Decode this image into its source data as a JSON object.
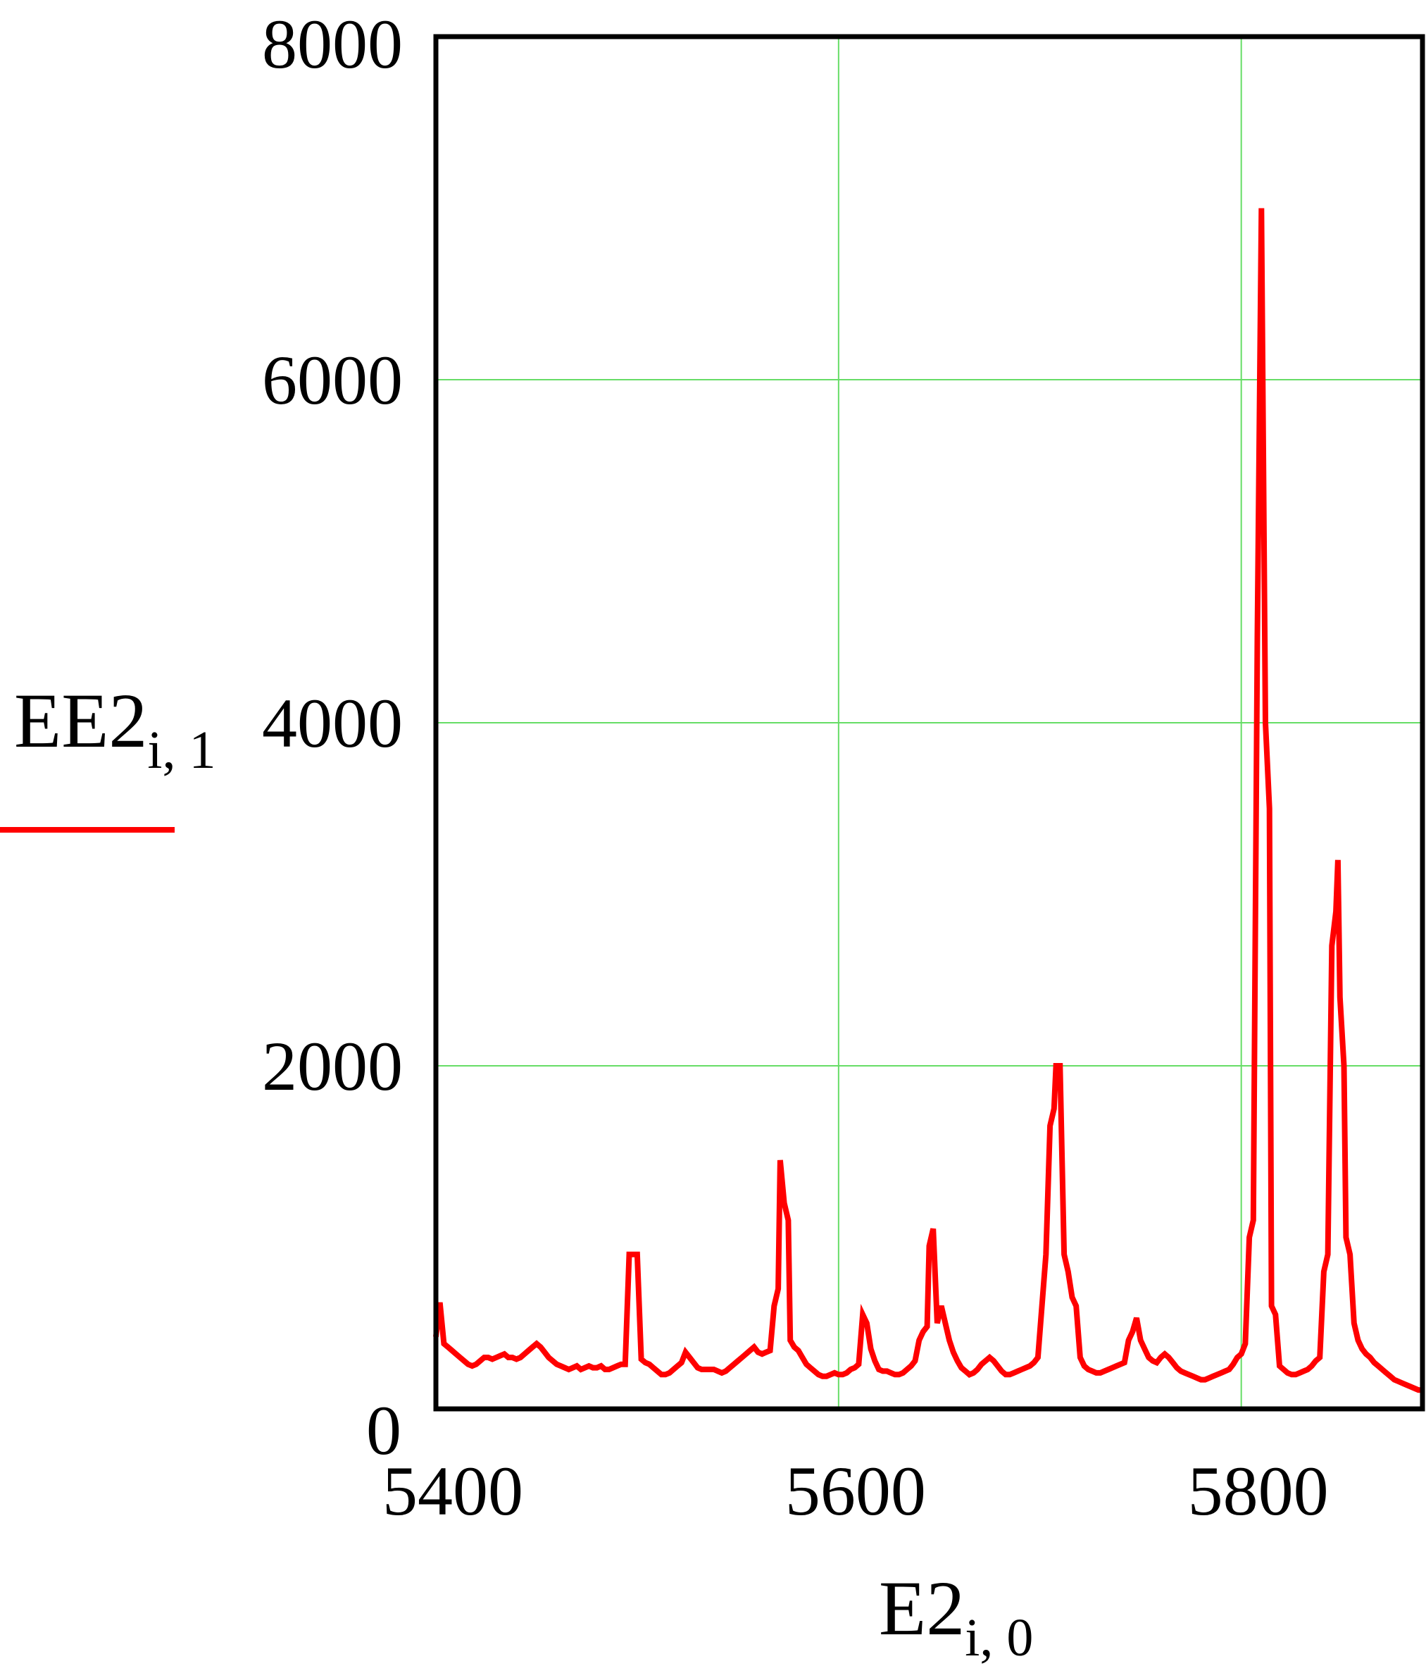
{
  "chart_data": {
    "type": "line",
    "ylabel": {
      "main": "EE2",
      "subscript": "i, 1"
    },
    "xlabel": {
      "main": "E2",
      "subscript": "i, 0"
    },
    "xlim": [
      5400,
      5890
    ],
    "ylim": [
      0,
      8000
    ],
    "xticks": [
      5400,
      5600,
      5800
    ],
    "yticks": [
      0,
      2000,
      4000,
      6000,
      8000
    ],
    "grid": true,
    "legend": "left",
    "colors": {
      "line": "#ff0000",
      "grid": "#66dd66",
      "frame": "#000000"
    },
    "series": [
      {
        "points": [
          [
            5400,
            420
          ],
          [
            5402,
            620
          ],
          [
            5404,
            380
          ],
          [
            5406,
            360
          ],
          [
            5408,
            340
          ],
          [
            5410,
            320
          ],
          [
            5412,
            300
          ],
          [
            5414,
            280
          ],
          [
            5416,
            260
          ],
          [
            5418,
            250
          ],
          [
            5420,
            260
          ],
          [
            5422,
            280
          ],
          [
            5424,
            300
          ],
          [
            5426,
            300
          ],
          [
            5428,
            290
          ],
          [
            5430,
            300
          ],
          [
            5432,
            310
          ],
          [
            5434,
            320
          ],
          [
            5436,
            300
          ],
          [
            5438,
            300
          ],
          [
            5440,
            290
          ],
          [
            5442,
            300
          ],
          [
            5444,
            320
          ],
          [
            5446,
            340
          ],
          [
            5448,
            360
          ],
          [
            5450,
            380
          ],
          [
            5452,
            360
          ],
          [
            5454,
            330
          ],
          [
            5456,
            300
          ],
          [
            5458,
            280
          ],
          [
            5460,
            260
          ],
          [
            5462,
            250
          ],
          [
            5464,
            240
          ],
          [
            5466,
            230
          ],
          [
            5468,
            240
          ],
          [
            5470,
            250
          ],
          [
            5472,
            230
          ],
          [
            5474,
            240
          ],
          [
            5476,
            250
          ],
          [
            5478,
            240
          ],
          [
            5480,
            240
          ],
          [
            5482,
            250
          ],
          [
            5484,
            230
          ],
          [
            5486,
            230
          ],
          [
            5488,
            240
          ],
          [
            5490,
            250
          ],
          [
            5492,
            260
          ],
          [
            5494,
            260
          ],
          [
            5496,
            900
          ],
          [
            5498,
            900
          ],
          [
            5500,
            900
          ],
          [
            5502,
            290
          ],
          [
            5504,
            270
          ],
          [
            5506,
            260
          ],
          [
            5508,
            240
          ],
          [
            5510,
            220
          ],
          [
            5512,
            200
          ],
          [
            5514,
            200
          ],
          [
            5516,
            210
          ],
          [
            5518,
            230
          ],
          [
            5520,
            250
          ],
          [
            5522,
            270
          ],
          [
            5524,
            330
          ],
          [
            5526,
            300
          ],
          [
            5528,
            270
          ],
          [
            5530,
            240
          ],
          [
            5532,
            230
          ],
          [
            5534,
            230
          ],
          [
            5536,
            230
          ],
          [
            5538,
            230
          ],
          [
            5540,
            220
          ],
          [
            5542,
            210
          ],
          [
            5544,
            220
          ],
          [
            5546,
            240
          ],
          [
            5548,
            260
          ],
          [
            5550,
            280
          ],
          [
            5552,
            300
          ],
          [
            5554,
            320
          ],
          [
            5556,
            340
          ],
          [
            5558,
            360
          ],
          [
            5560,
            330
          ],
          [
            5562,
            320
          ],
          [
            5564,
            330
          ],
          [
            5566,
            340
          ],
          [
            5568,
            600
          ],
          [
            5570,
            700
          ],
          [
            5571,
            1450
          ],
          [
            5573,
            1200
          ],
          [
            5575,
            1100
          ],
          [
            5576,
            400
          ],
          [
            5578,
            360
          ],
          [
            5580,
            340
          ],
          [
            5582,
            300
          ],
          [
            5584,
            260
          ],
          [
            5586,
            240
          ],
          [
            5588,
            220
          ],
          [
            5590,
            200
          ],
          [
            5592,
            190
          ],
          [
            5594,
            190
          ],
          [
            5596,
            200
          ],
          [
            5598,
            210
          ],
          [
            5600,
            200
          ],
          [
            5602,
            200
          ],
          [
            5604,
            210
          ],
          [
            5606,
            230
          ],
          [
            5608,
            240
          ],
          [
            5610,
            260
          ],
          [
            5612,
            550
          ],
          [
            5614,
            500
          ],
          [
            5616,
            350
          ],
          [
            5618,
            280
          ],
          [
            5620,
            230
          ],
          [
            5622,
            220
          ],
          [
            5624,
            220
          ],
          [
            5626,
            210
          ],
          [
            5628,
            200
          ],
          [
            5630,
            200
          ],
          [
            5632,
            210
          ],
          [
            5634,
            230
          ],
          [
            5636,
            250
          ],
          [
            5638,
            280
          ],
          [
            5640,
            400
          ],
          [
            5642,
            450
          ],
          [
            5644,
            480
          ],
          [
            5645,
            950
          ],
          [
            5647,
            1050
          ],
          [
            5649,
            500
          ],
          [
            5651,
            600
          ],
          [
            5653,
            500
          ],
          [
            5655,
            400
          ],
          [
            5657,
            330
          ],
          [
            5659,
            280
          ],
          [
            5661,
            240
          ],
          [
            5663,
            220
          ],
          [
            5665,
            200
          ],
          [
            5667,
            210
          ],
          [
            5669,
            230
          ],
          [
            5671,
            260
          ],
          [
            5673,
            280
          ],
          [
            5675,
            300
          ],
          [
            5677,
            280
          ],
          [
            5679,
            250
          ],
          [
            5681,
            220
          ],
          [
            5683,
            200
          ],
          [
            5685,
            200
          ],
          [
            5687,
            210
          ],
          [
            5689,
            220
          ],
          [
            5691,
            230
          ],
          [
            5693,
            240
          ],
          [
            5695,
            250
          ],
          [
            5697,
            270
          ],
          [
            5699,
            300
          ],
          [
            5701,
            600
          ],
          [
            5703,
            900
          ],
          [
            5705,
            1650
          ],
          [
            5707,
            1750
          ],
          [
            5708,
            2000
          ],
          [
            5710,
            2000
          ],
          [
            5712,
            900
          ],
          [
            5714,
            800
          ],
          [
            5716,
            650
          ],
          [
            5718,
            600
          ],
          [
            5720,
            300
          ],
          [
            5722,
            250
          ],
          [
            5724,
            230
          ],
          [
            5726,
            220
          ],
          [
            5728,
            210
          ],
          [
            5730,
            210
          ],
          [
            5732,
            220
          ],
          [
            5734,
            230
          ],
          [
            5736,
            240
          ],
          [
            5738,
            250
          ],
          [
            5740,
            260
          ],
          [
            5742,
            270
          ],
          [
            5744,
            400
          ],
          [
            5746,
            450
          ],
          [
            5748,
            530
          ],
          [
            5750,
            400
          ],
          [
            5752,
            350
          ],
          [
            5754,
            300
          ],
          [
            5756,
            280
          ],
          [
            5758,
            270
          ],
          [
            5760,
            300
          ],
          [
            5762,
            320
          ],
          [
            5764,
            300
          ],
          [
            5766,
            270
          ],
          [
            5768,
            240
          ],
          [
            5770,
            220
          ],
          [
            5772,
            210
          ],
          [
            5774,
            200
          ],
          [
            5776,
            190
          ],
          [
            5778,
            180
          ],
          [
            5780,
            170
          ],
          [
            5782,
            170
          ],
          [
            5784,
            180
          ],
          [
            5786,
            190
          ],
          [
            5788,
            200
          ],
          [
            5790,
            210
          ],
          [
            5792,
            220
          ],
          [
            5794,
            230
          ],
          [
            5796,
            260
          ],
          [
            5798,
            300
          ],
          [
            5800,
            320
          ],
          [
            5802,
            380
          ],
          [
            5804,
            1000
          ],
          [
            5806,
            1100
          ],
          [
            5808,
            4500
          ],
          [
            5810,
            7000
          ],
          [
            5812,
            4000
          ],
          [
            5814,
            3500
          ],
          [
            5815,
            600
          ],
          [
            5817,
            550
          ],
          [
            5819,
            250
          ],
          [
            5821,
            230
          ],
          [
            5823,
            210
          ],
          [
            5825,
            200
          ],
          [
            5827,
            200
          ],
          [
            5829,
            210
          ],
          [
            5831,
            220
          ],
          [
            5833,
            230
          ],
          [
            5835,
            250
          ],
          [
            5837,
            280
          ],
          [
            5839,
            300
          ],
          [
            5841,
            800
          ],
          [
            5843,
            900
          ],
          [
            5845,
            2700
          ],
          [
            5847,
            2900
          ],
          [
            5848,
            3200
          ],
          [
            5849,
            2400
          ],
          [
            5851,
            2000
          ],
          [
            5852,
            1000
          ],
          [
            5854,
            900
          ],
          [
            5856,
            500
          ],
          [
            5858,
            400
          ],
          [
            5860,
            350
          ],
          [
            5862,
            320
          ],
          [
            5864,
            300
          ],
          [
            5866,
            270
          ],
          [
            5868,
            250
          ],
          [
            5870,
            230
          ],
          [
            5872,
            210
          ],
          [
            5874,
            190
          ],
          [
            5876,
            170
          ],
          [
            5878,
            160
          ],
          [
            5880,
            150
          ],
          [
            5882,
            140
          ],
          [
            5884,
            130
          ],
          [
            5886,
            120
          ],
          [
            5888,
            110
          ],
          [
            5890,
            110
          ]
        ]
      }
    ]
  }
}
